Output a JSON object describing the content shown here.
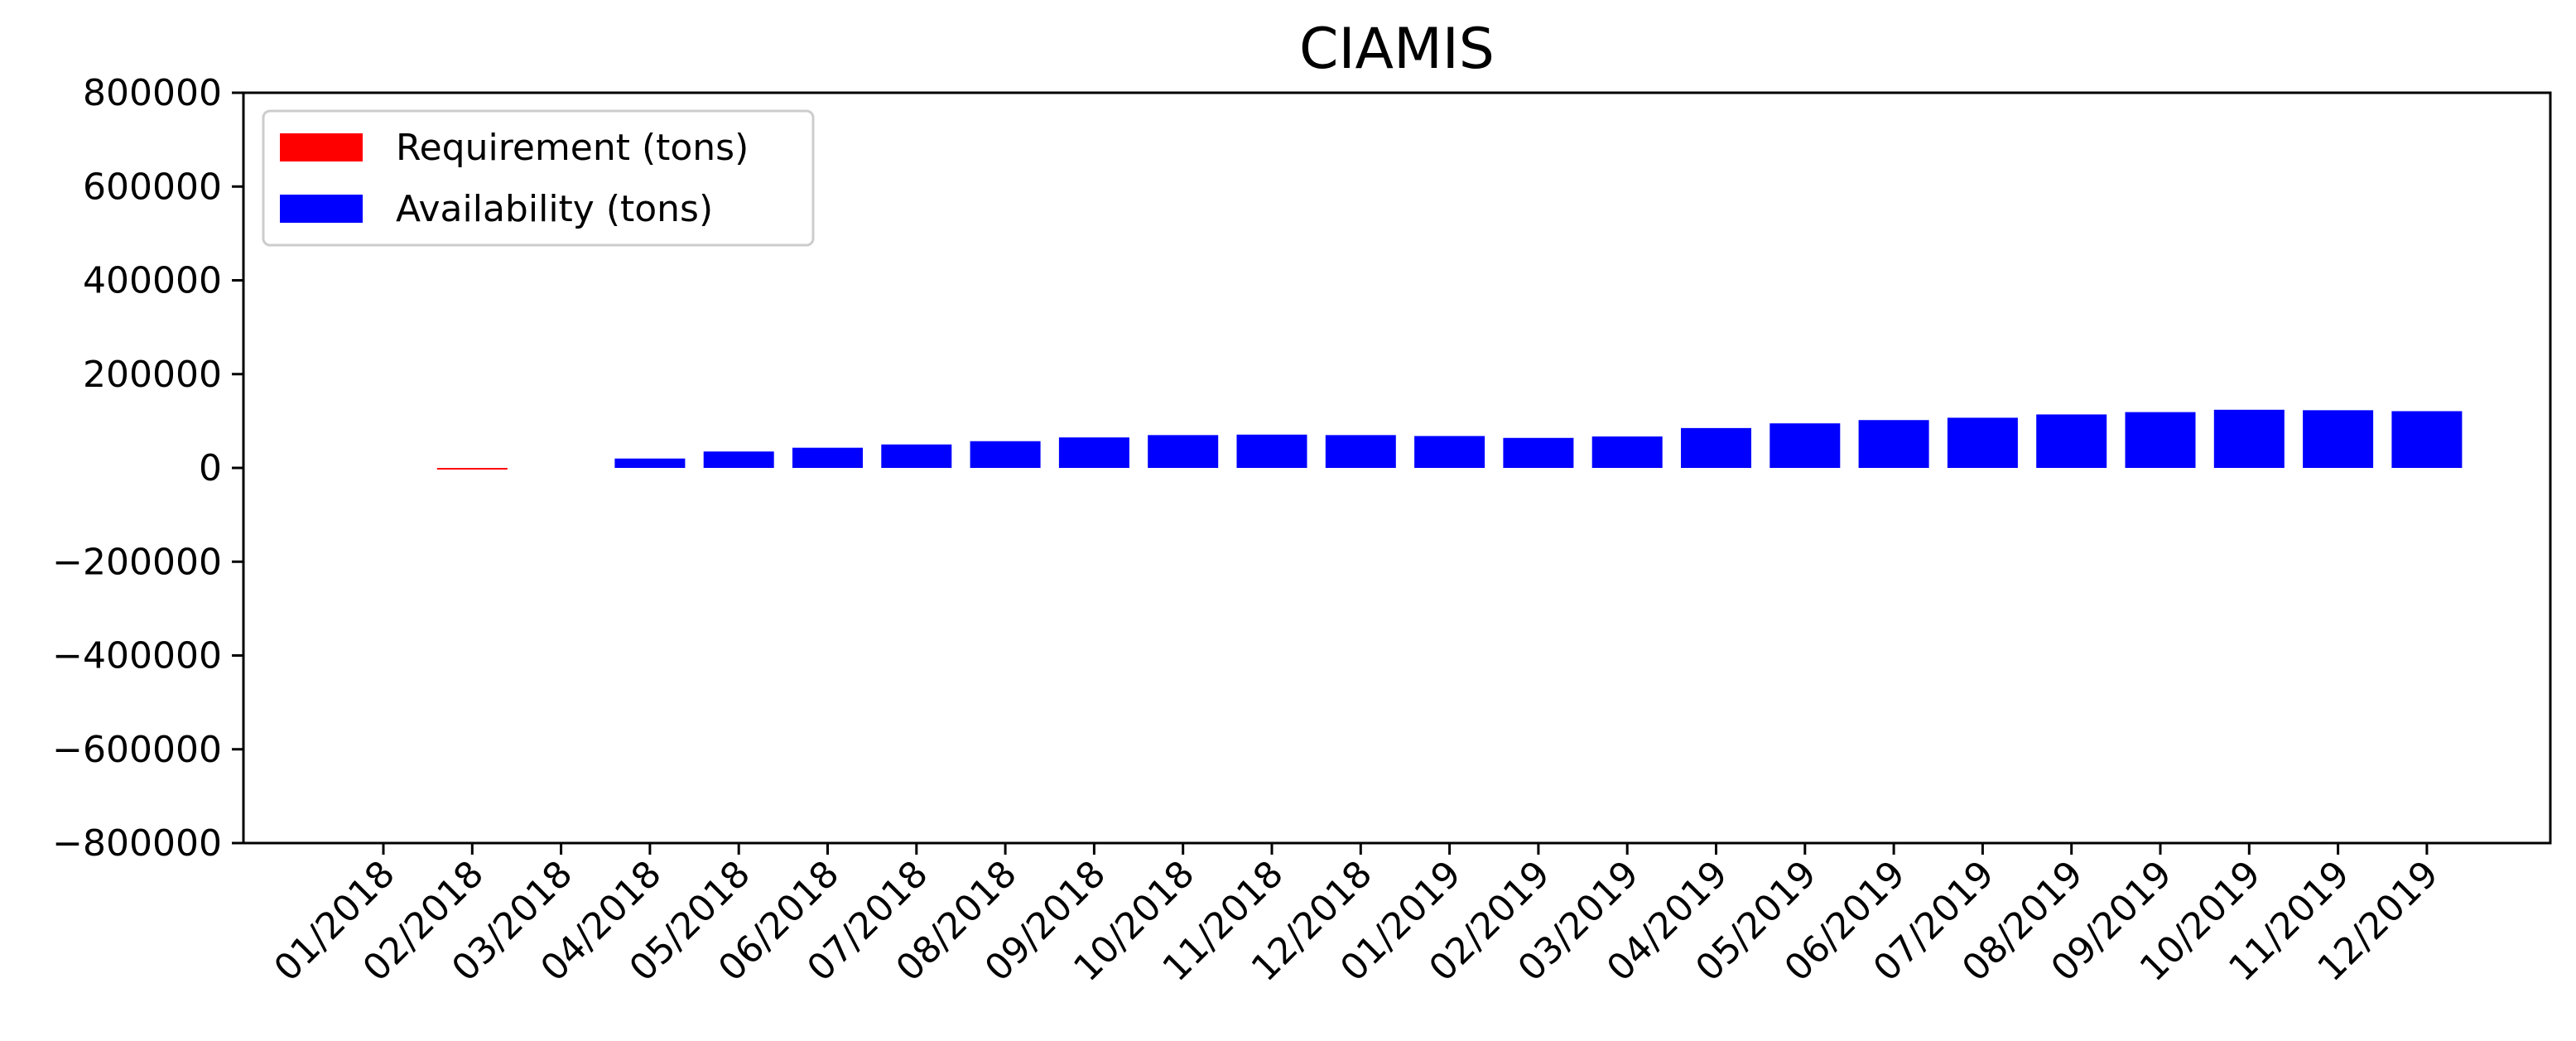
{
  "chart_data": {
    "type": "bar",
    "title": "CIAMIS",
    "xlabel": "",
    "ylabel": "",
    "ylim": [
      -800000,
      800000
    ],
    "yticks": [
      "800000",
      "600000",
      "400000",
      "200000",
      "0",
      "−200000",
      "−400000",
      "−600000",
      "−800000"
    ],
    "ytick_values": [
      800000,
      600000,
      400000,
      200000,
      0,
      -200000,
      -400000,
      -600000,
      -800000
    ],
    "categories": [
      "01/2018",
      "02/2018",
      "03/2018",
      "04/2018",
      "05/2018",
      "06/2018",
      "07/2018",
      "08/2018",
      "09/2018",
      "10/2018",
      "11/2018",
      "12/2018",
      "01/2019",
      "02/2019",
      "03/2019",
      "04/2019",
      "05/2019",
      "06/2019",
      "07/2019",
      "08/2019",
      "09/2019",
      "10/2019",
      "11/2019",
      "12/2019"
    ],
    "series": [
      {
        "name": "Requirement (tons)",
        "color": "#ff0000",
        "values": [
          0,
          -2000,
          0,
          0,
          0,
          0,
          0,
          0,
          0,
          0,
          0,
          0,
          0,
          0,
          0,
          0,
          0,
          0,
          0,
          0,
          0,
          0,
          0,
          0
        ]
      },
      {
        "name": "Availability (tons)",
        "color": "#0000ff",
        "values": [
          0,
          0,
          0,
          20000,
          35000,
          43000,
          50000,
          57000,
          65000,
          70000,
          71000,
          70000,
          68000,
          64000,
          67000,
          85000,
          95000,
          102000,
          107000,
          114000,
          119000,
          124000,
          123000,
          121000
        ]
      }
    ],
    "legend": "top-left",
    "grid": false
  }
}
